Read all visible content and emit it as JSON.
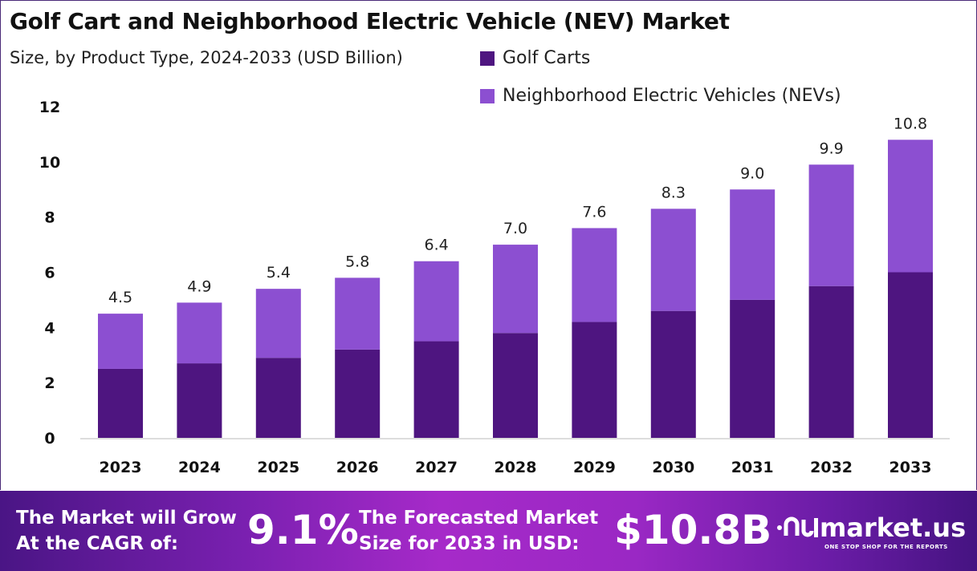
{
  "chart_data": {
    "type": "bar",
    "stacked": true,
    "title": "Golf Cart and Neighborhood Electric Vehicle (NEV) Market",
    "subtitle": "Size, by Product Type, 2024-2033 (USD Billion)",
    "categories": [
      "2023",
      "2024",
      "2025",
      "2026",
      "2027",
      "2028",
      "2029",
      "2030",
      "2031",
      "2032",
      "2033"
    ],
    "series": [
      {
        "name": "Golf Carts",
        "color": "#4e1580",
        "values": [
          2.5,
          2.7,
          2.9,
          3.2,
          3.5,
          3.8,
          4.2,
          4.6,
          5.0,
          5.5,
          6.0
        ]
      },
      {
        "name": "Neighborhood Electric Vehicles (NEVs)",
        "color": "#8c4fd1",
        "values": [
          2.0,
          2.2,
          2.5,
          2.6,
          2.9,
          3.2,
          3.4,
          3.7,
          4.0,
          4.4,
          4.8
        ]
      }
    ],
    "totals": [
      "4.5",
      "4.9",
      "5.4",
      "5.8",
      "6.4",
      "7.0",
      "7.6",
      "8.3",
      "9.0",
      "9.9",
      "10.8"
    ],
    "yticks": [
      "0",
      "2",
      "4",
      "6",
      "8",
      "10",
      "12"
    ],
    "ylim": [
      0,
      12
    ],
    "grid": false,
    "legend_position": "top-right"
  },
  "footer": {
    "cagr_label_1": "The Market will Grow",
    "cagr_label_2": "At the CAGR of:",
    "cagr_value": "9.1%",
    "forecast_label_1": "The Forecasted Market",
    "forecast_label_2": "Size for 2033 in USD:",
    "forecast_value": "$10.8B",
    "logo_name": "market.us",
    "logo_tagline": "ONE STOP SHOP FOR THE REPORTS"
  }
}
